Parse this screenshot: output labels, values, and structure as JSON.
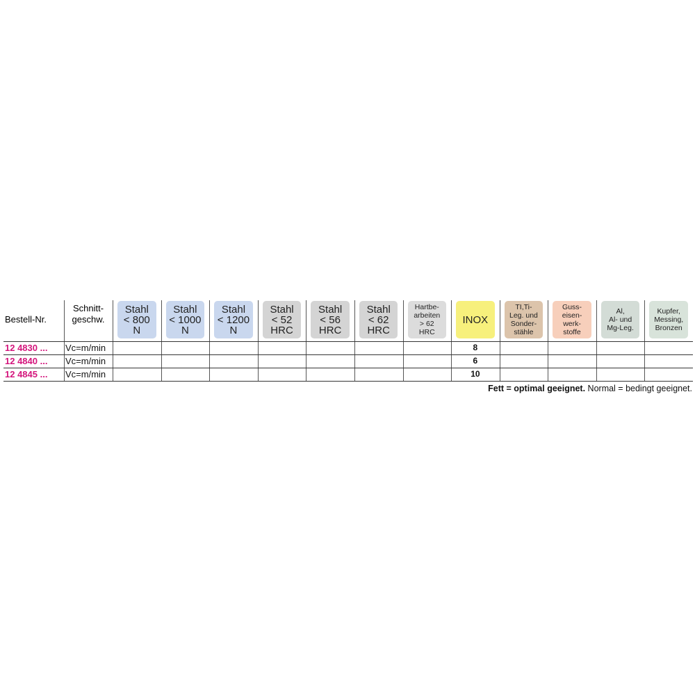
{
  "table": {
    "order_header": "Bestell-Nr.",
    "speed_header": [
      "Schnitt-",
      "geschw."
    ],
    "materials": [
      {
        "lines": [
          "Stahl",
          "< 800",
          "N"
        ],
        "color": "#c9d7ee",
        "size": "big"
      },
      {
        "lines": [
          "Stahl",
          "< 1000",
          "N"
        ],
        "color": "#c9d7ee",
        "size": "big"
      },
      {
        "lines": [
          "Stahl",
          "< 1200",
          "N"
        ],
        "color": "#c9d7ee",
        "size": "big"
      },
      {
        "lines": [
          "Stahl",
          "< 52",
          "HRC"
        ],
        "color": "#d4d4d4",
        "size": "big"
      },
      {
        "lines": [
          "Stahl",
          "< 56",
          "HRC"
        ],
        "color": "#d4d4d4",
        "size": "big"
      },
      {
        "lines": [
          "Stahl",
          "< 62",
          "HRC"
        ],
        "color": "#d4d4d4",
        "size": "big"
      },
      {
        "lines": [
          "Hartbe-",
          "arbeiten",
          "> 62",
          "HRC"
        ],
        "color": "#dcdcdc",
        "size": "small"
      },
      {
        "lines": [
          "INOX"
        ],
        "color": "#f7f07c",
        "size": "big"
      },
      {
        "lines": [
          "TI,Ti-",
          "Leg. und",
          "Sonder-",
          "stähle"
        ],
        "color": "#dcc4ab",
        "size": "small"
      },
      {
        "lines": [
          "Guss-",
          "eisen-",
          "werk-",
          "stoffe"
        ],
        "color": "#f7cfbb",
        "size": "small"
      },
      {
        "lines": [
          "Al,",
          "Al- und",
          "Mg-Leg."
        ],
        "color": "#d3dcd6",
        "size": "small"
      },
      {
        "lines": [
          "Kupfer,",
          "Messing,",
          "Bronzen"
        ],
        "color": "#d8e3da",
        "size": "small"
      }
    ],
    "rows": [
      {
        "order": "12 4830 ...",
        "speed": "Vc=m/min",
        "inox": 8
      },
      {
        "order": "12 4840 ...",
        "speed": "Vc=m/min",
        "inox": 6
      },
      {
        "order": "12 4845 ...",
        "speed": "Vc=m/min",
        "inox": 10
      }
    ]
  },
  "footer": {
    "bold": "Fett = optimal geeignet.",
    "normal": " Normal = bedingt geeignet."
  }
}
